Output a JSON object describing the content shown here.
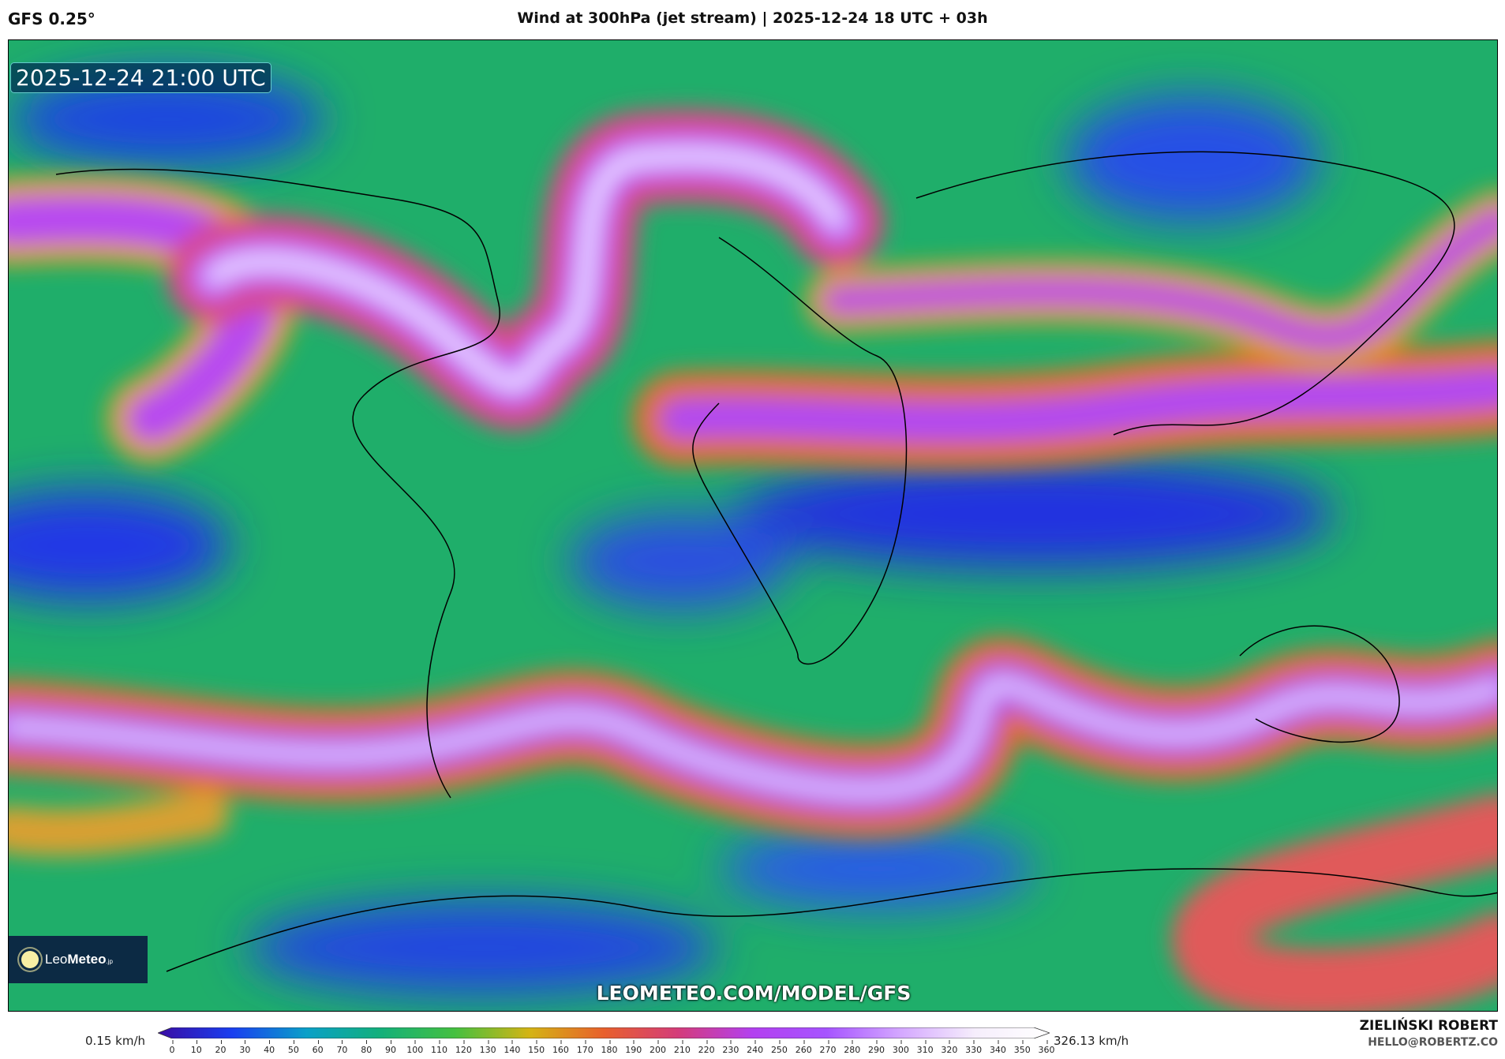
{
  "header": {
    "model": "GFS 0.25°",
    "title": "Wind at 300hPa (jet stream) | 2025-12-24 18 UTC + 03h"
  },
  "map": {
    "valid_time": "2025-12-24 21:00 UTC",
    "watermark_url": "LEOMETEO.COM/MODEL/GFS",
    "logo": "LeoMeteo.jp"
  },
  "colorbar": {
    "min_label": "0.15 km/h",
    "max_label": "326.13 km/h",
    "unit": "km/h",
    "ticks": [
      "0",
      "10",
      "20",
      "30",
      "40",
      "50",
      "60",
      "70",
      "80",
      "90",
      "100",
      "110",
      "120",
      "130",
      "140",
      "150",
      "160",
      "170",
      "180",
      "190",
      "200",
      "210",
      "220",
      "230",
      "240",
      "250",
      "260",
      "270",
      "280",
      "290",
      "300",
      "310",
      "320",
      "330",
      "340",
      "350",
      "360"
    ],
    "colors": [
      "#3a0ca3",
      "#1a3ff0",
      "#0aa0c8",
      "#13b07a",
      "#45c040",
      "#d4b414",
      "#e8602c",
      "#d43c7a",
      "#b340f0",
      "#a654ff",
      "#d4a8ff",
      "#f6eefc",
      "#ffffff"
    ]
  },
  "credits": {
    "author": "ZIELIŃSKI ROBERT",
    "email": "HELLO@ROBERTZ.CO"
  }
}
